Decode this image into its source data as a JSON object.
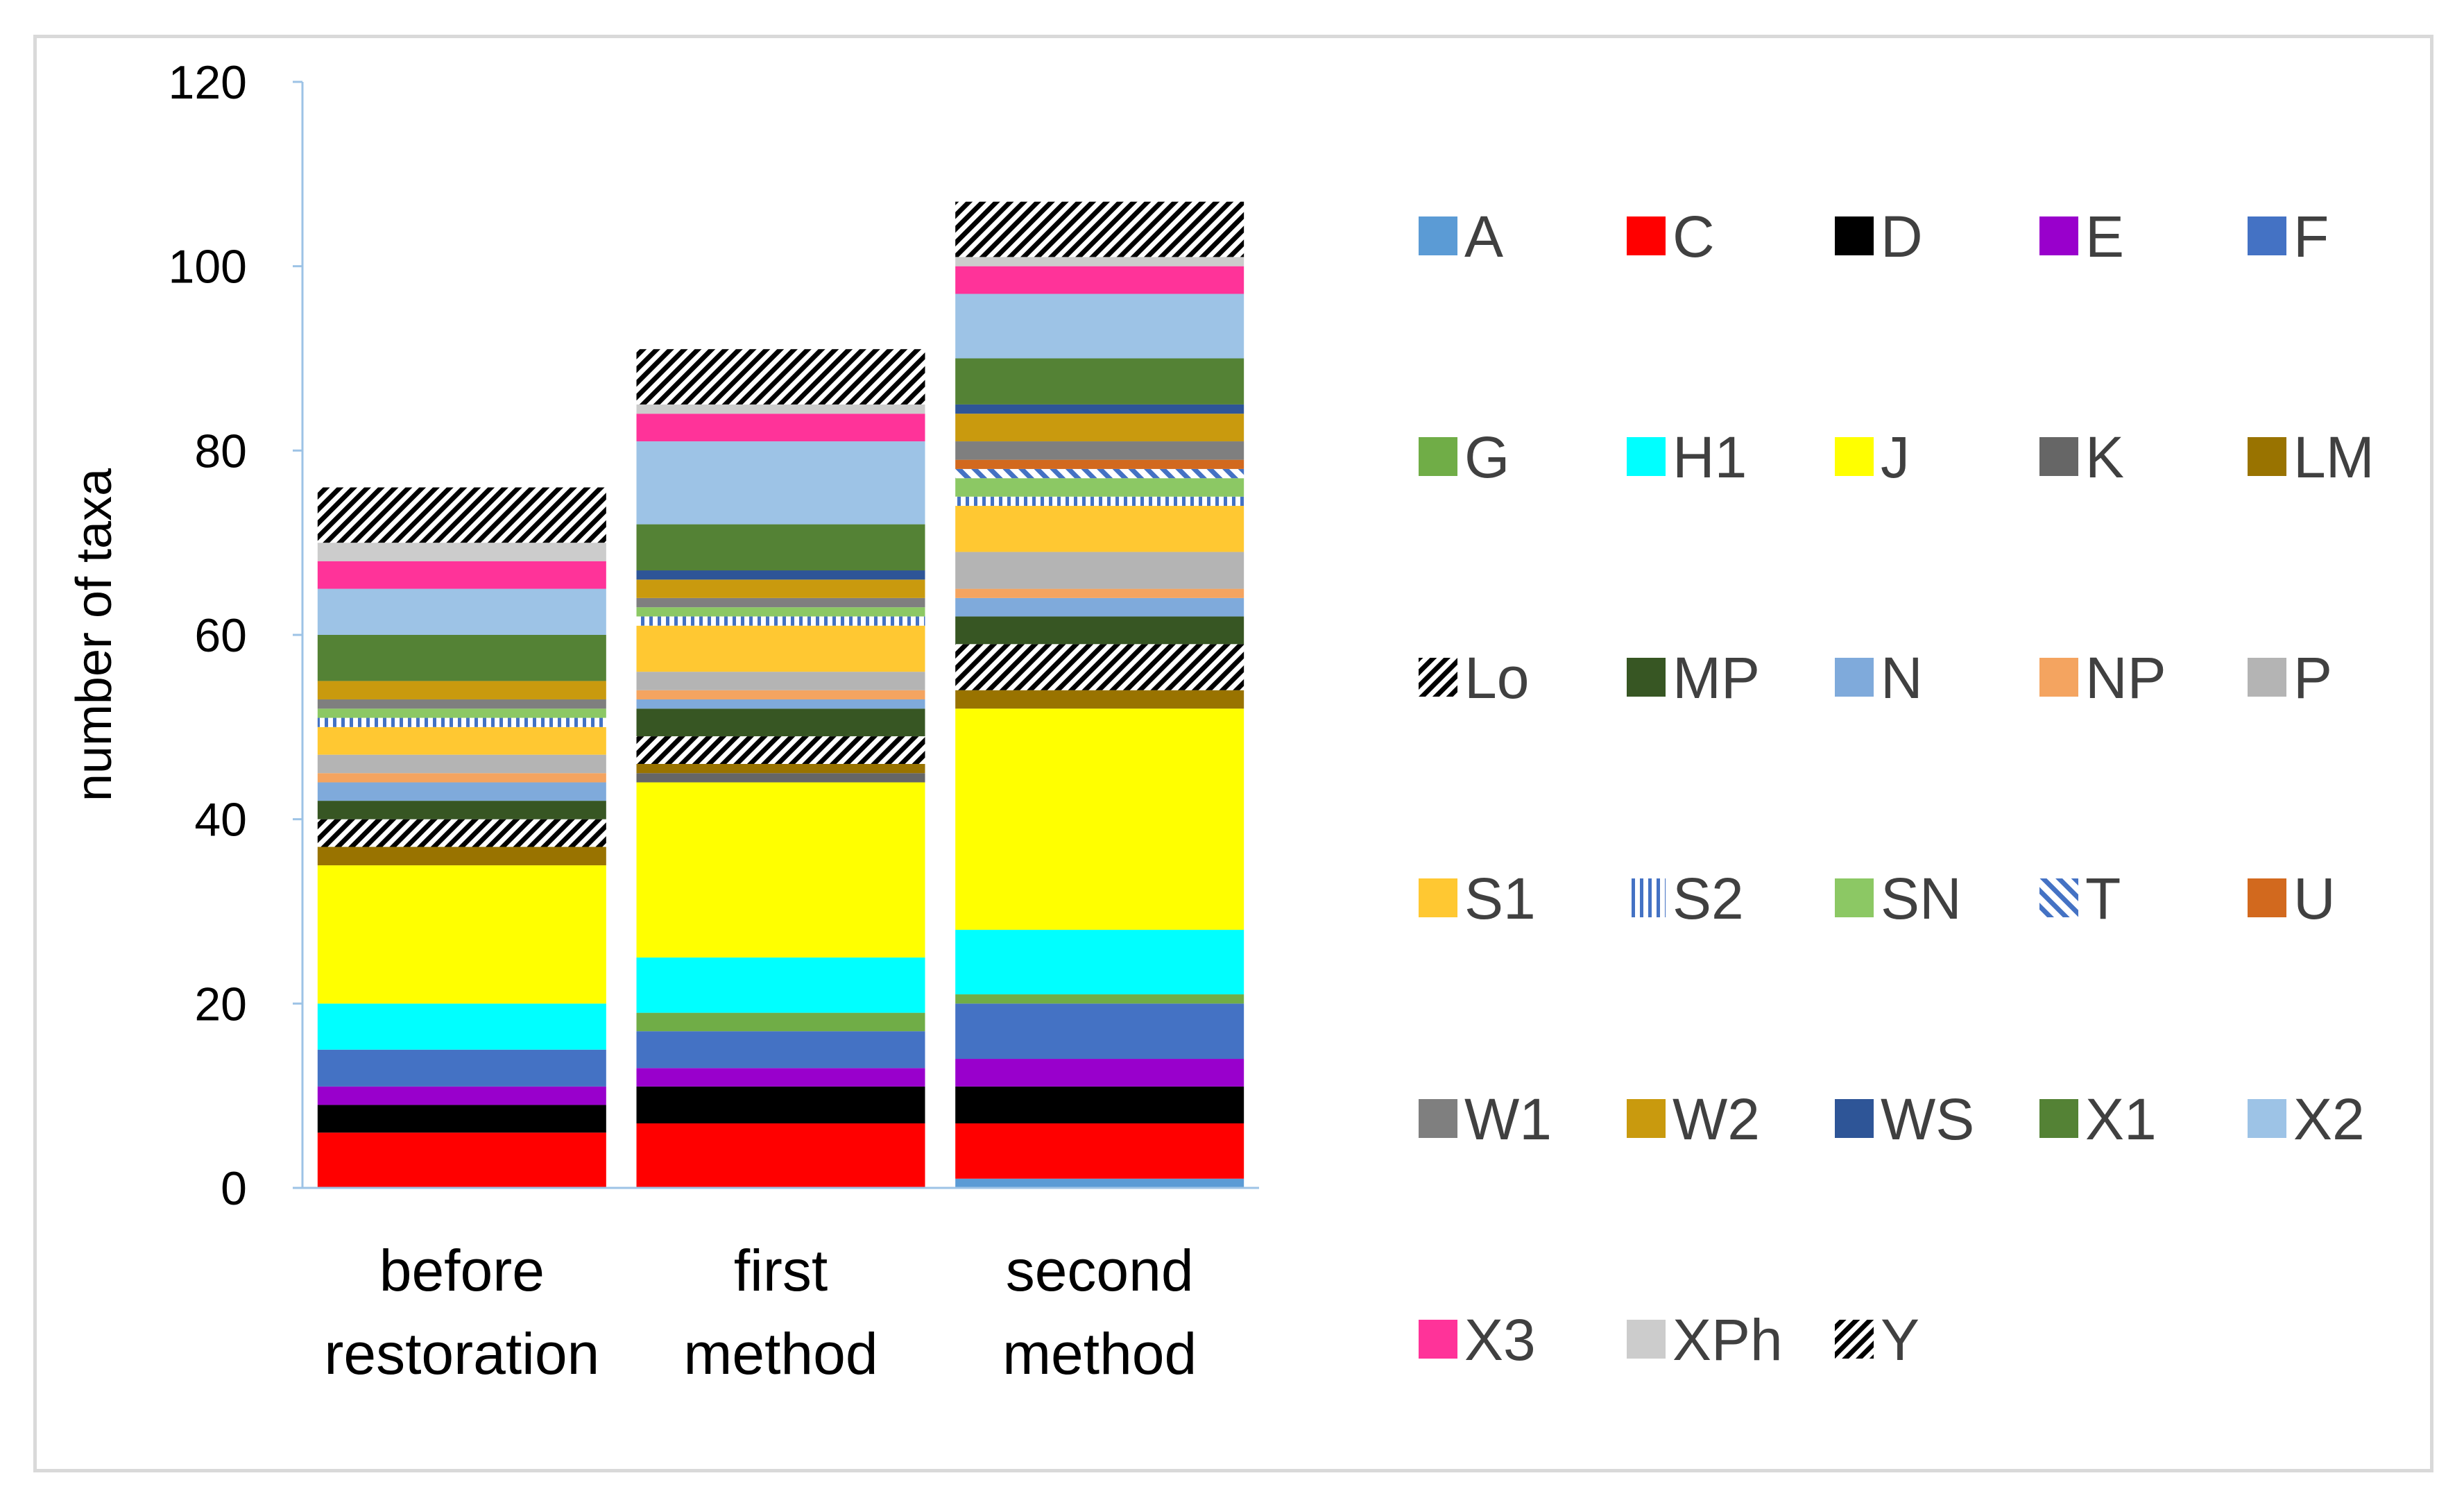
{
  "chart_data": {
    "type": "bar",
    "stacked": true,
    "title": "",
    "xlabel": "",
    "ylabel": "number of taxa",
    "ylim": [
      0,
      120
    ],
    "yticks": [
      0,
      20,
      40,
      60,
      80,
      100,
      120
    ],
    "categories": [
      {
        "line1": "before",
        "line2": "restoration"
      },
      {
        "line1": "first",
        "line2": "method"
      },
      {
        "line1": "second",
        "line2": "method"
      }
    ],
    "legend_position": "right",
    "series": [
      {
        "name": "A",
        "color": "#5b9bd5",
        "pattern": "solid",
        "values": [
          0,
          0,
          1
        ]
      },
      {
        "name": "C",
        "color": "#ff0000",
        "pattern": "solid",
        "values": [
          6,
          7,
          6
        ]
      },
      {
        "name": "D",
        "color": "#000000",
        "pattern": "solid",
        "values": [
          3,
          4,
          4
        ]
      },
      {
        "name": "E",
        "color": "#9900cc",
        "pattern": "solid",
        "values": [
          2,
          2,
          3
        ]
      },
      {
        "name": "F",
        "color": "#4472c4",
        "pattern": "solid",
        "values": [
          4,
          4,
          6
        ]
      },
      {
        "name": "G",
        "color": "#70ad47",
        "pattern": "solid",
        "values": [
          0,
          2,
          1
        ]
      },
      {
        "name": "H1",
        "color": "#00ffff",
        "pattern": "solid",
        "values": [
          5,
          6,
          7
        ]
      },
      {
        "name": "J",
        "color": "#ffff00",
        "pattern": "solid",
        "values": [
          15,
          19,
          24
        ]
      },
      {
        "name": "K",
        "color": "#666666",
        "pattern": "solid",
        "values": [
          0,
          1,
          0
        ]
      },
      {
        "name": "LM",
        "color": "#997300",
        "pattern": "solid",
        "values": [
          2,
          1,
          2
        ]
      },
      {
        "name": "Lo",
        "color": "#000000",
        "pattern": "diagonal",
        "values": [
          3,
          3,
          5
        ]
      },
      {
        "name": "MP",
        "color": "#375623",
        "pattern": "solid",
        "values": [
          2,
          3,
          3
        ]
      },
      {
        "name": "N",
        "color": "#7faadb",
        "pattern": "solid",
        "values": [
          2,
          1,
          2
        ]
      },
      {
        "name": "NP",
        "color": "#f4a460",
        "pattern": "solid",
        "values": [
          1,
          1,
          1
        ]
      },
      {
        "name": "P",
        "color": "#b4b4b4",
        "pattern": "solid",
        "values": [
          2,
          2,
          4
        ]
      },
      {
        "name": "S1",
        "color": "#ffc832",
        "pattern": "solid",
        "values": [
          3,
          5,
          5
        ]
      },
      {
        "name": "S2",
        "color": "#4472c4",
        "pattern": "vertical",
        "values": [
          1,
          1,
          1
        ]
      },
      {
        "name": "SN",
        "color": "#8cc864",
        "pattern": "solid",
        "values": [
          1,
          1,
          2
        ]
      },
      {
        "name": "T",
        "color": "#4472c4",
        "pattern": "dashed",
        "values": [
          0,
          0,
          1
        ]
      },
      {
        "name": "U",
        "color": "#d2691e",
        "pattern": "solid",
        "values": [
          0,
          0,
          1
        ]
      },
      {
        "name": "W1",
        "color": "#7f7f7f",
        "pattern": "solid",
        "values": [
          1,
          1,
          2
        ]
      },
      {
        "name": "W2",
        "color": "#c99a0e",
        "pattern": "solid",
        "values": [
          2,
          2,
          3
        ]
      },
      {
        "name": "WS",
        "color": "#2e5597",
        "pattern": "solid",
        "values": [
          0,
          1,
          1
        ]
      },
      {
        "name": "X1",
        "color": "#548235",
        "pattern": "solid",
        "values": [
          5,
          5,
          5
        ]
      },
      {
        "name": "X2",
        "color": "#9dc3e6",
        "pattern": "solid",
        "values": [
          5,
          9,
          7
        ]
      },
      {
        "name": "X3",
        "color": "#ff3399",
        "pattern": "solid",
        "values": [
          3,
          3,
          3
        ]
      },
      {
        "name": "XPh",
        "color": "#cccccc",
        "pattern": "solid",
        "values": [
          2,
          1,
          1
        ]
      },
      {
        "name": "Y",
        "color": "#000000",
        "pattern": "diagonal",
        "values": [
          6,
          6,
          6
        ]
      }
    ]
  }
}
